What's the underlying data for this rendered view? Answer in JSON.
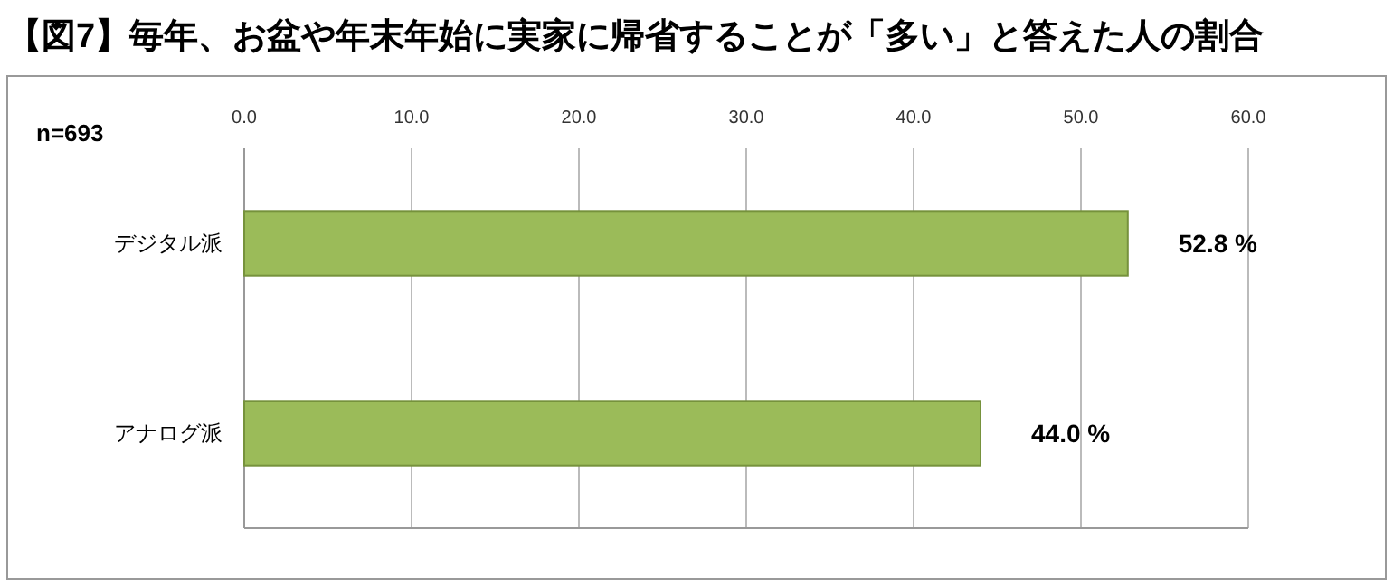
{
  "chart_data": {
    "type": "bar",
    "orientation": "horizontal",
    "title": "【図7】毎年、お盆や年末年始に実家に帰省することが「多い」と答えた人の割合",
    "categories": [
      "デジタル派",
      "アナログ派"
    ],
    "values": [
      52.8,
      44.0
    ],
    "color": "#9bbb59",
    "value_labels": [
      "52.8 %",
      "44.0 %"
    ],
    "xlim": [
      0,
      60
    ],
    "xticks": [
      {
        "value": 0,
        "label": "0.0"
      },
      {
        "value": 10,
        "label": "10.0"
      },
      {
        "value": 20,
        "label": "20.0"
      },
      {
        "value": 30,
        "label": "30.0"
      },
      {
        "value": 40,
        "label": "40.0"
      },
      {
        "value": 50,
        "label": "50.0"
      },
      {
        "value": 60,
        "label": "60.0"
      }
    ],
    "grid": "x",
    "annotations": [
      "n=693"
    ]
  }
}
